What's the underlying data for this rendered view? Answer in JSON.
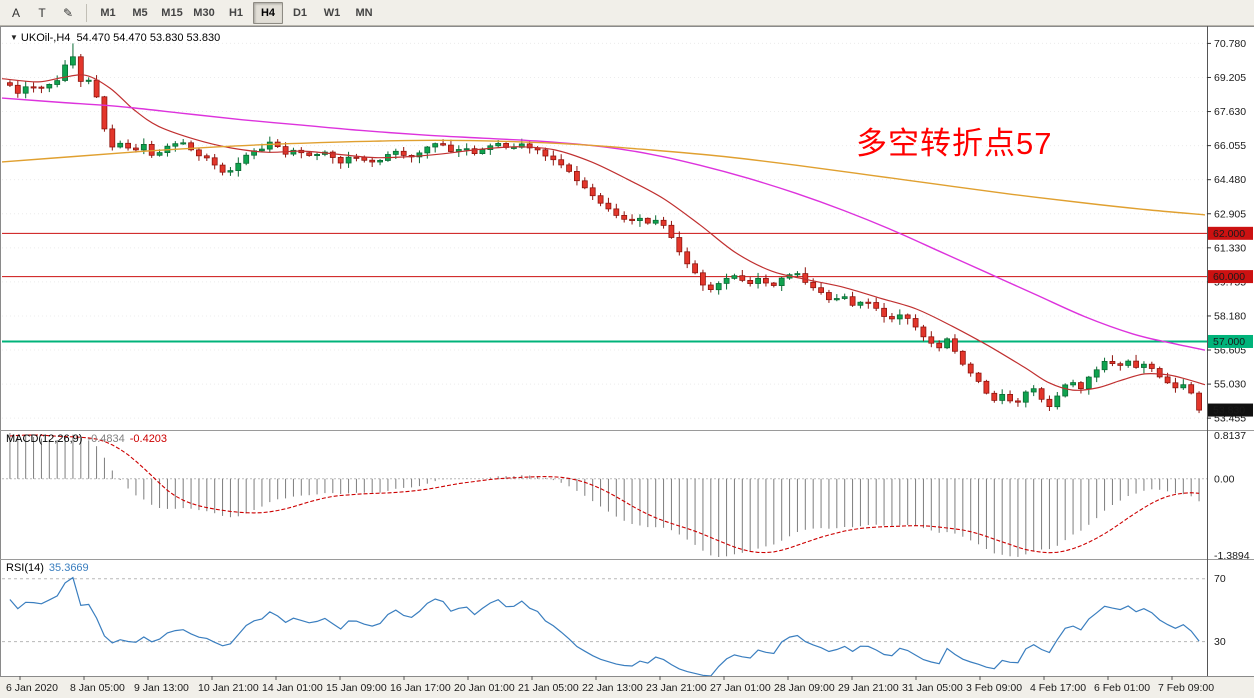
{
  "toolbar": {
    "tool_buttons": [
      {
        "name": "cursor-tool",
        "glyph": "A"
      },
      {
        "name": "text-tool",
        "glyph": "T"
      },
      {
        "name": "draw-tool",
        "glyph": "✎"
      }
    ],
    "timeframes": [
      "M1",
      "M5",
      "M15",
      "M30",
      "H1",
      "H4",
      "D1",
      "W1",
      "MN"
    ],
    "active_timeframe": "H4"
  },
  "chart": {
    "dropdown_icon": "▼",
    "symbol": "UKOil-,H4",
    "ohlc": "54.470 54.470 53.830 53.830",
    "annotation": {
      "text": "多空转折点57",
      "color": "#FF0000"
    },
    "axis_labels": [
      "70.780",
      "69.205",
      "67.630",
      "66.055",
      "64.480",
      "62.905",
      "61.330",
      "59.755",
      "58.180",
      "56.605",
      "55.030",
      "53.455"
    ],
    "levels": [
      {
        "price": 62.0,
        "label": "62.000",
        "color": "#CC1111",
        "thick": 1
      },
      {
        "price": 60.0,
        "label": "60.000",
        "color": "#CC1111",
        "thick": 1
      },
      {
        "price": 57.0,
        "label": "57.000",
        "color": "#00B37A",
        "thick": 2
      }
    ],
    "current_price": 53.83,
    "current_price_label": "53.830",
    "ma_lines": [
      {
        "name": "ma-fast-red",
        "color": "#C03030",
        "width": 1.2,
        "points": [
          [
            0,
            69.15
          ],
          [
            0.03,
            69.0
          ],
          [
            0.05,
            69.2
          ],
          [
            0.07,
            69.3
          ],
          [
            0.09,
            68.7
          ],
          [
            0.11,
            67.7
          ],
          [
            0.13,
            66.95
          ],
          [
            0.16,
            66.35
          ],
          [
            0.19,
            65.95
          ],
          [
            0.22,
            65.75
          ],
          [
            0.25,
            65.8
          ],
          [
            0.28,
            65.65
          ],
          [
            0.31,
            65.5
          ],
          [
            0.34,
            65.55
          ],
          [
            0.37,
            65.7
          ],
          [
            0.4,
            65.9
          ],
          [
            0.43,
            66.0
          ],
          [
            0.46,
            65.85
          ],
          [
            0.49,
            65.3
          ],
          [
            0.52,
            64.5
          ],
          [
            0.55,
            63.6
          ],
          [
            0.58,
            62.4
          ],
          [
            0.61,
            61.1
          ],
          [
            0.64,
            60.25
          ],
          [
            0.67,
            59.85
          ],
          [
            0.7,
            59.5
          ],
          [
            0.73,
            59.0
          ],
          [
            0.76,
            58.5
          ],
          [
            0.79,
            57.7
          ],
          [
            0.82,
            56.8
          ],
          [
            0.85,
            55.8
          ],
          [
            0.87,
            55.1
          ],
          [
            0.89,
            54.75
          ],
          [
            0.91,
            54.85
          ],
          [
            0.93,
            55.2
          ],
          [
            0.95,
            55.5
          ],
          [
            0.97,
            55.45
          ],
          [
            0.985,
            55.25
          ],
          [
            1.0,
            55.0
          ]
        ]
      },
      {
        "name": "ma-mid-magenta",
        "color": "#DD33DD",
        "width": 1.4,
        "points": [
          [
            0,
            68.25
          ],
          [
            0.05,
            68.05
          ],
          [
            0.1,
            67.85
          ],
          [
            0.15,
            67.55
          ],
          [
            0.2,
            67.25
          ],
          [
            0.25,
            67.0
          ],
          [
            0.3,
            66.75
          ],
          [
            0.35,
            66.55
          ],
          [
            0.4,
            66.4
          ],
          [
            0.45,
            66.25
          ],
          [
            0.5,
            66.0
          ],
          [
            0.54,
            65.65
          ],
          [
            0.58,
            65.15
          ],
          [
            0.62,
            64.55
          ],
          [
            0.66,
            63.85
          ],
          [
            0.7,
            63.05
          ],
          [
            0.74,
            62.15
          ],
          [
            0.78,
            61.15
          ],
          [
            0.82,
            60.15
          ],
          [
            0.86,
            59.15
          ],
          [
            0.9,
            58.15
          ],
          [
            0.94,
            57.35
          ],
          [
            0.97,
            56.95
          ],
          [
            1.0,
            56.6
          ]
        ]
      },
      {
        "name": "ma-slow-orange",
        "color": "#E0A030",
        "width": 1.4,
        "points": [
          [
            0,
            65.3
          ],
          [
            0.06,
            65.55
          ],
          [
            0.12,
            65.8
          ],
          [
            0.18,
            66.0
          ],
          [
            0.24,
            66.15
          ],
          [
            0.3,
            66.25
          ],
          [
            0.36,
            66.3
          ],
          [
            0.42,
            66.25
          ],
          [
            0.48,
            66.1
          ],
          [
            0.54,
            65.85
          ],
          [
            0.6,
            65.55
          ],
          [
            0.66,
            65.15
          ],
          [
            0.72,
            64.7
          ],
          [
            0.78,
            64.25
          ],
          [
            0.84,
            63.8
          ],
          [
            0.9,
            63.4
          ],
          [
            0.95,
            63.1
          ],
          [
            1.0,
            62.85
          ]
        ]
      }
    ]
  },
  "chart_data": {
    "type": "candlestick",
    "symbol": "UKOil",
    "timeframe": "H4",
    "current_bar": {
      "open": 54.47,
      "high": 54.47,
      "low": 53.83,
      "close": 53.83
    },
    "num_candles": 152,
    "last_close": 53.83,
    "spike_high": 70.78,
    "price_range_top": 71.4,
    "price_range_bottom": 53.0,
    "up_color": "#0FA34F",
    "up_stroke": "#0A6B34",
    "down_color": "#E3362B",
    "down_stroke": "#8F150F",
    "price_path": [
      [
        0.0,
        68.8
      ],
      [
        0.008,
        68.5
      ],
      [
        0.016,
        68.9
      ],
      [
        0.024,
        68.6
      ],
      [
        0.032,
        68.9
      ],
      [
        0.04,
        69.1
      ],
      [
        0.047,
        69.9
      ],
      [
        0.052,
        70.45
      ],
      [
        0.057,
        69.1
      ],
      [
        0.063,
        68.8
      ],
      [
        0.068,
        69.2
      ],
      [
        0.074,
        68.1
      ],
      [
        0.08,
        66.7
      ],
      [
        0.087,
        65.9
      ],
      [
        0.095,
        66.3
      ],
      [
        0.104,
        65.7
      ],
      [
        0.113,
        66.1
      ],
      [
        0.122,
        65.5
      ],
      [
        0.132,
        66.0
      ],
      [
        0.142,
        66.3
      ],
      [
        0.152,
        65.8
      ],
      [
        0.162,
        65.6
      ],
      [
        0.172,
        65.1
      ],
      [
        0.18,
        64.7
      ],
      [
        0.19,
        65.1
      ],
      [
        0.2,
        65.6
      ],
      [
        0.21,
        65.9
      ],
      [
        0.22,
        66.2
      ],
      [
        0.23,
        65.7
      ],
      [
        0.242,
        65.9
      ],
      [
        0.254,
        65.5
      ],
      [
        0.266,
        65.8
      ],
      [
        0.278,
        65.3
      ],
      [
        0.29,
        65.6
      ],
      [
        0.302,
        65.2
      ],
      [
        0.314,
        65.5
      ],
      [
        0.326,
        65.8
      ],
      [
        0.338,
        65.5
      ],
      [
        0.35,
        65.9
      ],
      [
        0.362,
        66.2
      ],
      [
        0.372,
        65.8
      ],
      [
        0.382,
        66.0
      ],
      [
        0.392,
        65.7
      ],
      [
        0.402,
        66.0
      ],
      [
        0.412,
        66.2
      ],
      [
        0.422,
        65.9
      ],
      [
        0.432,
        66.1
      ],
      [
        0.442,
        65.9
      ],
      [
        0.452,
        65.6
      ],
      [
        0.462,
        65.2
      ],
      [
        0.472,
        64.7
      ],
      [
        0.482,
        64.2
      ],
      [
        0.492,
        63.7
      ],
      [
        0.502,
        63.2
      ],
      [
        0.512,
        62.8
      ],
      [
        0.52,
        62.5
      ],
      [
        0.528,
        62.8
      ],
      [
        0.536,
        62.4
      ],
      [
        0.544,
        62.7
      ],
      [
        0.552,
        62.2
      ],
      [
        0.56,
        61.4
      ],
      [
        0.57,
        60.6
      ],
      [
        0.58,
        59.8
      ],
      [
        0.59,
        59.4
      ],
      [
        0.6,
        59.8
      ],
      [
        0.61,
        60.1
      ],
      [
        0.62,
        59.6
      ],
      [
        0.63,
        59.9
      ],
      [
        0.64,
        59.5
      ],
      [
        0.65,
        59.9
      ],
      [
        0.66,
        60.2
      ],
      [
        0.67,
        59.7
      ],
      [
        0.68,
        59.3
      ],
      [
        0.69,
        58.8
      ],
      [
        0.7,
        59.2
      ],
      [
        0.71,
        58.6
      ],
      [
        0.72,
        58.9
      ],
      [
        0.73,
        58.4
      ],
      [
        0.74,
        57.9
      ],
      [
        0.75,
        58.3
      ],
      [
        0.76,
        57.7
      ],
      [
        0.77,
        57.2
      ],
      [
        0.78,
        56.7
      ],
      [
        0.788,
        57.1
      ],
      [
        0.796,
        56.4
      ],
      [
        0.804,
        55.8
      ],
      [
        0.812,
        55.3
      ],
      [
        0.82,
        54.7
      ],
      [
        0.828,
        54.2
      ],
      [
        0.836,
        54.6
      ],
      [
        0.844,
        54.0
      ],
      [
        0.852,
        54.5
      ],
      [
        0.86,
        54.9
      ],
      [
        0.868,
        54.3
      ],
      [
        0.876,
        53.95
      ],
      [
        0.884,
        54.7
      ],
      [
        0.892,
        55.2
      ],
      [
        0.9,
        54.8
      ],
      [
        0.908,
        55.4
      ],
      [
        0.916,
        55.9
      ],
      [
        0.924,
        56.15
      ],
      [
        0.932,
        55.8
      ],
      [
        0.94,
        56.05
      ],
      [
        0.948,
        55.7
      ],
      [
        0.956,
        55.95
      ],
      [
        0.964,
        55.5
      ],
      [
        0.972,
        55.2
      ],
      [
        0.98,
        54.9
      ],
      [
        0.988,
        55.05
      ],
      [
        0.994,
        54.6
      ],
      [
        1.0,
        53.83
      ]
    ]
  },
  "macd": {
    "label": "MACD(12,26,9)",
    "value_main": "-0.4834",
    "value_signal": "-0.4203",
    "axis_max": "0.8137",
    "axis_zero": "0.00",
    "axis_min": "-1.3894"
  },
  "rsi": {
    "label": "RSI(14)",
    "value": "35.3669",
    "level_high": "70",
    "level_low": "30"
  },
  "time_axis": {
    "labels": [
      "6 Jan 2020",
      "8 Jan 05:00",
      "9 Jan 13:00",
      "10 Jan 21:00",
      "14 Jan 01:00",
      "15 Jan 09:00",
      "16 Jan 17:00",
      "20 Jan 01:00",
      "21 Jan 05:00",
      "22 Jan 13:00",
      "23 Jan 21:00",
      "27 Jan 01:00",
      "28 Jan 09:00",
      "29 Jan 21:00",
      "31 Jan 05:00",
      "3 Feb 09:00",
      "4 Feb 17:00",
      "6 Feb 01:00",
      "7 Feb 09:00"
    ]
  }
}
